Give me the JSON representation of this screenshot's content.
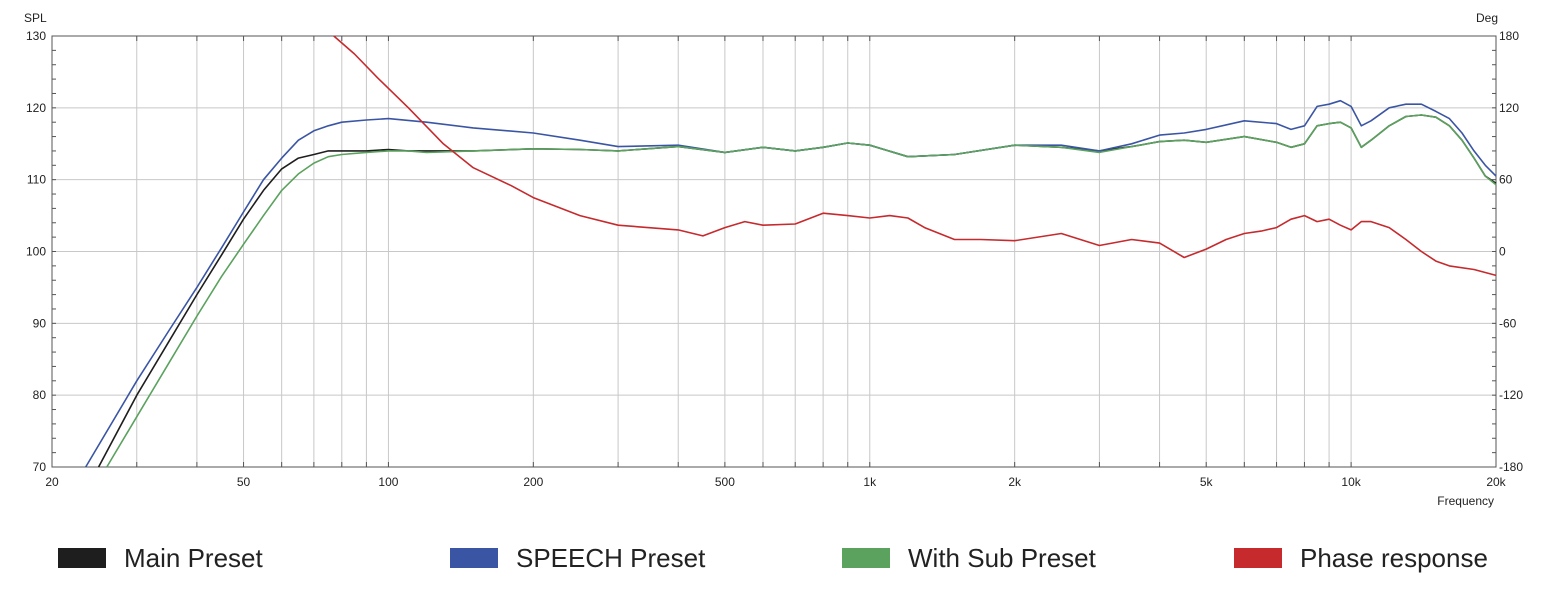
{
  "chart_data": {
    "type": "line",
    "x_scale": "log",
    "xlim": [
      20,
      20000
    ],
    "ylim": [
      70,
      130
    ],
    "y2lim": [
      -180,
      180
    ],
    "grid": true,
    "legend_placement": "bottom",
    "ylabel": "SPL",
    "y2label": "Deg",
    "xlabel": "Frequency",
    "x_ticks": [
      {
        "value": 20,
        "label": "20"
      },
      {
        "value": 50,
        "label": "50"
      },
      {
        "value": 100,
        "label": "100"
      },
      {
        "value": 200,
        "label": "200"
      },
      {
        "value": 500,
        "label": "500"
      },
      {
        "value": 1000,
        "label": "1k"
      },
      {
        "value": 2000,
        "label": "2k"
      },
      {
        "value": 5000,
        "label": "5k"
      },
      {
        "value": 10000,
        "label": "10k"
      },
      {
        "value": 20000,
        "label": "20k"
      }
    ],
    "y_ticks": [
      "130",
      "120",
      "110",
      "100",
      "90",
      "80",
      "70"
    ],
    "y2_ticks": [
      "180",
      "120",
      "60",
      "0",
      "-60",
      "-120",
      "-180"
    ],
    "series": [
      {
        "name": "Main Preset",
        "color": "#1e1e1e",
        "axis": "left",
        "x": [
          25,
          30,
          35,
          40,
          45,
          50,
          55,
          60,
          65,
          70,
          75,
          80,
          90,
          100,
          110,
          120,
          150,
          200,
          250,
          300,
          400,
          500,
          600,
          700,
          800,
          900,
          1000,
          1200,
          1500,
          2000,
          2500,
          3000,
          3500,
          4000,
          4500,
          5000,
          6000,
          7000,
          7500,
          8000,
          8500,
          9000,
          9500,
          10000,
          10500,
          11000,
          12000,
          13000,
          14000,
          15000,
          16000,
          17000,
          18000,
          19000,
          20000
        ],
        "y": [
          70,
          80,
          87.5,
          94,
          99.5,
          104.5,
          108.5,
          111.5,
          113,
          113.5,
          114,
          114,
          114,
          114.2,
          114,
          114,
          114,
          114.3,
          114.2,
          114,
          114.6,
          113.8,
          114.5,
          114,
          114.5,
          115.1,
          114.8,
          113.2,
          113.5,
          114.8,
          114.5,
          114,
          114.6,
          115.3,
          115.5,
          115.2,
          116,
          115.2,
          114.5,
          115,
          117.5,
          117.8,
          118,
          117.2,
          114.5,
          115.5,
          117.5,
          118.8,
          119,
          118.7,
          117.5,
          115.5,
          113,
          110.5,
          109.5
        ]
      },
      {
        "name": "SPEECH Preset",
        "color": "#3a55a4",
        "axis": "left",
        "x": [
          23.5,
          30,
          35,
          40,
          45,
          50,
          55,
          60,
          65,
          70,
          75,
          80,
          90,
          100,
          120,
          150,
          200,
          250,
          300,
          400,
          500,
          600,
          700,
          800,
          900,
          1000,
          1200,
          1500,
          2000,
          2500,
          3000,
          3500,
          4000,
          4500,
          5000,
          6000,
          7000,
          7500,
          8000,
          8500,
          9000,
          9500,
          10000,
          10500,
          11000,
          12000,
          13000,
          14000,
          15000,
          16000,
          17000,
          18000,
          19000,
          20000
        ],
        "y": [
          70,
          82,
          89,
          95,
          100.5,
          105.5,
          110,
          113,
          115.5,
          116.8,
          117.5,
          118,
          118.3,
          118.5,
          118,
          117.2,
          116.5,
          115.5,
          114.6,
          114.8,
          113.8,
          114.5,
          114,
          114.5,
          115.1,
          114.8,
          113.2,
          113.5,
          114.8,
          114.8,
          114,
          115,
          116.2,
          116.5,
          117,
          118.2,
          117.8,
          117,
          117.5,
          120.2,
          120.5,
          121,
          120.2,
          117.5,
          118.2,
          120,
          120.5,
          120.5,
          119.5,
          118.5,
          116.5,
          114,
          112,
          110.5
        ]
      },
      {
        "name": "With Sub Preset",
        "color": "#5aa25e",
        "axis": "left",
        "x": [
          26,
          30,
          35,
          40,
          45,
          50,
          55,
          60,
          65,
          70,
          75,
          80,
          90,
          100,
          110,
          120,
          150,
          200,
          250,
          300,
          400,
          500,
          600,
          700,
          800,
          900,
          1000,
          1200,
          1500,
          2000,
          2500,
          3000,
          3500,
          4000,
          4500,
          5000,
          6000,
          7000,
          7500,
          8000,
          8500,
          9000,
          9500,
          10000,
          10500,
          11000,
          12000,
          13000,
          14000,
          15000,
          16000,
          17000,
          18000,
          19000,
          20000
        ],
        "y": [
          70,
          77,
          84.5,
          91,
          96.5,
          101,
          105,
          108.5,
          110.8,
          112.3,
          113.2,
          113.5,
          113.8,
          114,
          114,
          113.8,
          114,
          114.3,
          114.2,
          114,
          114.6,
          113.8,
          114.5,
          114,
          114.5,
          115.1,
          114.8,
          113.2,
          113.5,
          114.8,
          114.5,
          113.8,
          114.6,
          115.3,
          115.5,
          115.2,
          116,
          115.2,
          114.5,
          115,
          117.5,
          117.8,
          118,
          117.2,
          114.5,
          115.5,
          117.5,
          118.8,
          119,
          118.7,
          117.5,
          115.5,
          113,
          110.5,
          109.3
        ]
      },
      {
        "name": "Phase response",
        "color": "#c62a2d",
        "axis": "right",
        "x": [
          77,
          85,
          95,
          110,
          130,
          150,
          180,
          200,
          250,
          300,
          400,
          450,
          500,
          550,
          600,
          700,
          800,
          900,
          1000,
          1100,
          1200,
          1300,
          1500,
          1700,
          2000,
          2500,
          3000,
          3500,
          4000,
          4500,
          5000,
          5500,
          6000,
          6500,
          7000,
          7500,
          8000,
          8500,
          9000,
          9500,
          10000,
          10500,
          11000,
          12000,
          13000,
          14000,
          15000,
          16000,
          18000,
          20000
        ],
        "y": [
          180,
          165,
          145,
          120,
          90,
          70,
          55,
          45,
          30,
          22,
          18,
          13,
          20,
          25,
          22,
          23,
          32,
          30,
          28,
          30,
          28,
          20,
          10,
          10,
          9,
          15,
          5,
          10,
          7,
          -5,
          2,
          10,
          15,
          17,
          20,
          27,
          30,
          25,
          27,
          22,
          18,
          25,
          25,
          20,
          10,
          0,
          -8,
          -12,
          -15,
          -20
        ]
      }
    ]
  }
}
